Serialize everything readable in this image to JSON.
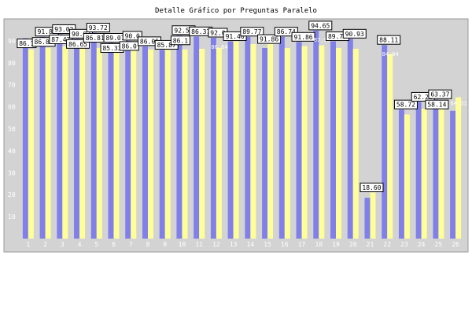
{
  "chart_data": {
    "type": "bar",
    "title": "Detalle Gráfico por Preguntas Paralelo",
    "categories": [
      "1",
      "2",
      "3",
      "4",
      "5",
      "6",
      "7",
      "8",
      "9",
      "10",
      "11",
      "12",
      "13",
      "14",
      "15",
      "16",
      "17",
      "18",
      "19",
      "20",
      "21",
      "22",
      "23",
      "24",
      "25",
      "26"
    ],
    "ylim": [
      0,
      100
    ],
    "y_ticks": [
      10,
      20,
      30,
      40,
      50,
      60,
      70,
      80,
      90
    ],
    "grid": false,
    "colors": {
      "plot_bg": "#d3d3d3",
      "series_a": "#8080e8",
      "series_b": "#ffff99",
      "axis_text": "#ffffff"
    },
    "series": [
      {
        "values": [
          91.2,
          91.86,
          93.02,
          90.93,
          93.72,
          89.07,
          90.0,
          87.5,
          85.87,
          92.56,
          92.0,
          91.4,
          89.8,
          91.86,
          86.74,
          91.86,
          89.5,
          94.65,
          89.77,
          90.93,
          18.6,
          88.11,
          58.72,
          62.21,
          63.37,
          58.14
        ]
      },
      {
        "values": [
          86.1,
          86.88,
          87.47,
          86.65,
          86.81,
          85.33,
          86.0,
          86.05,
          85.87,
          86.1,
          86.37,
          86.84,
          89.77,
          88.5,
          88.5,
          86.74,
          87.6,
          87.95,
          86.77,
          86.4,
          20.97,
          84.04,
          56.5,
          59.1,
          59.5,
          64.31
        ]
      }
    ],
    "labels": [
      {
        "cat": 1,
        "text": "91.",
        "boxed": false
      },
      {
        "cat": 1,
        "text": "86.1",
        "boxed": true
      },
      {
        "cat": 2,
        "text": "91.86",
        "boxed": true
      },
      {
        "cat": 2,
        "text": "86.88",
        "boxed": true
      },
      {
        "cat": 3,
        "text": "93.02",
        "boxed": true
      },
      {
        "cat": 3,
        "text": "87.47",
        "boxed": true
      },
      {
        "cat": 4,
        "text": "90.93",
        "boxed": true
      },
      {
        "cat": 4,
        "text": "86.65",
        "boxed": true
      },
      {
        "cat": 5,
        "text": "93.72",
        "boxed": true
      },
      {
        "cat": 5,
        "text": "86.81",
        "boxed": true
      },
      {
        "cat": 6,
        "text": "89.07",
        "boxed": true
      },
      {
        "cat": 6,
        "text": "85.33",
        "boxed": true
      },
      {
        "cat": 7,
        "text": "90.0",
        "boxed": true
      },
      {
        "cat": 7,
        "text": "86.0",
        "boxed": true
      },
      {
        "cat": 8,
        "text": "86.05",
        "boxed": true
      },
      {
        "cat": 9,
        "text": "85.87",
        "boxed": true
      },
      {
        "cat": 10,
        "text": "92.56",
        "boxed": true
      },
      {
        "cat": 10,
        "text": "86.1",
        "boxed": true
      },
      {
        "cat": 11,
        "text": "86.37",
        "boxed": true
      },
      {
        "cat": 12,
        "text": "92.0",
        "boxed": true
      },
      {
        "cat": 12,
        "text": "86.84",
        "boxed": false
      },
      {
        "cat": 13,
        "text": "91.40",
        "boxed": true
      },
      {
        "cat": 14,
        "text": "89.77",
        "boxed": true
      },
      {
        "cat": 15,
        "text": "91.86",
        "boxed": true
      },
      {
        "cat": 16,
        "text": "86.74",
        "boxed": true
      },
      {
        "cat": 17,
        "text": "91.86",
        "boxed": true
      },
      {
        "cat": 18,
        "text": "94.65",
        "boxed": true
      },
      {
        "cat": 18,
        "text": "87.95",
        "boxed": false
      },
      {
        "cat": 19,
        "text": "89.77",
        "boxed": true
      },
      {
        "cat": 20,
        "text": "90.93",
        "boxed": true
      },
      {
        "cat": 21,
        "text": "18.60",
        "boxed": true
      },
      {
        "cat": 22,
        "text": "88.11",
        "boxed": true
      },
      {
        "cat": 22,
        "text": "84.04",
        "boxed": false
      },
      {
        "cat": 23,
        "text": "58.72",
        "boxed": true
      },
      {
        "cat": 24,
        "text": "62.21",
        "boxed": true
      },
      {
        "cat": 25,
        "text": "63.37",
        "boxed": true
      },
      {
        "cat": 25,
        "text": "58.14",
        "boxed": true
      },
      {
        "cat": 26,
        "text": "64.31",
        "boxed": false
      }
    ]
  }
}
